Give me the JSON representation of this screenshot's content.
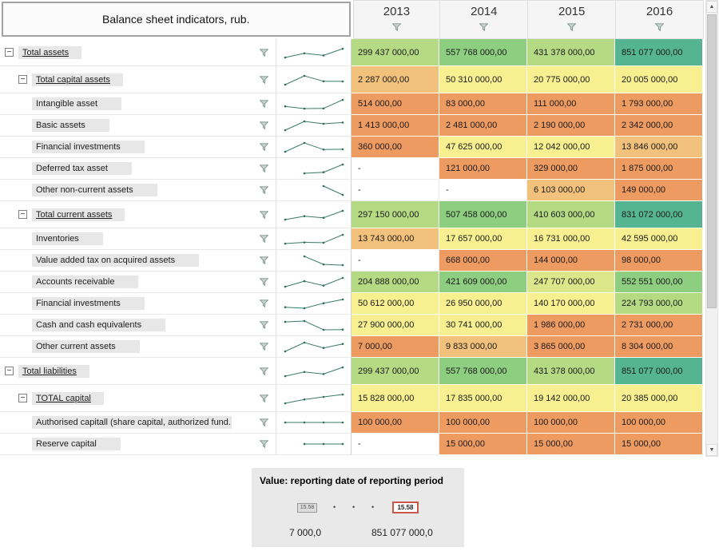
{
  "header": {
    "title": "Balance sheet indicators, rub.",
    "years": [
      "2013",
      "2014",
      "2015",
      "2016"
    ]
  },
  "icons": {
    "collapse": "−",
    "scroll_up": "▲",
    "scroll_down": "▼",
    "dot": "•",
    "filter": "funnel-icon"
  },
  "colors": {
    "palette": {
      "orange": "#EE9B62",
      "lightorange": "#F2C17B",
      "yellow": "#F7EF90",
      "yellowgreen": "#DCE68A",
      "lightgreen": "#B5DA84",
      "green": "#8DCE80",
      "teal": "#55B492",
      "none": "#FFFFFF"
    },
    "spark_line": "#3A7A6A",
    "spark_dot": "#2E6E5F"
  },
  "rows": [
    {
      "label": "Total assets",
      "level": 0,
      "group": true,
      "values": [
        "299 437 000,00",
        "557 768 000,00",
        "431 378 000,00",
        "851 077 000,00"
      ],
      "colors": [
        "lightgreen",
        "green",
        "lightgreen",
        "teal"
      ]
    },
    {
      "label": "Total capital assets",
      "level": 1,
      "group": true,
      "values": [
        "2 287 000,00",
        "50 310 000,00",
        "20 775 000,00",
        "20 005 000,00"
      ],
      "colors": [
        "lightorange",
        "yellow",
        "yellow",
        "yellow"
      ]
    },
    {
      "label": "Intangible asset",
      "level": 2,
      "group": false,
      "values": [
        "514 000,00",
        "83 000,00",
        "111 000,00",
        "1 793 000,00"
      ],
      "colors": [
        "orange",
        "orange",
        "orange",
        "orange"
      ]
    },
    {
      "label": "Basic assets",
      "level": 2,
      "group": false,
      "values": [
        "1 413 000,00",
        "2 481 000,00",
        "2 190 000,00",
        "2 342 000,00"
      ],
      "colors": [
        "orange",
        "orange",
        "orange",
        "orange"
      ]
    },
    {
      "label": "Financial investments",
      "level": 2,
      "group": false,
      "values": [
        "360 000,00",
        "47 625 000,00",
        "12 042 000,00",
        "13 846 000,00"
      ],
      "colors": [
        "orange",
        "yellow",
        "yellow",
        "lightorange"
      ]
    },
    {
      "label": "Deferred tax asset",
      "level": 2,
      "group": false,
      "values": [
        "-",
        "121 000,00",
        "329 000,00",
        "1 875 000,00"
      ],
      "colors": [
        "none",
        "orange",
        "orange",
        "orange"
      ]
    },
    {
      "label": "Other non-current assets",
      "level": 2,
      "group": false,
      "values": [
        "-",
        "-",
        "6 103 000,00",
        "149 000,00"
      ],
      "colors": [
        "none",
        "none",
        "lightorange",
        "orange"
      ]
    },
    {
      "label": "Total current assets",
      "level": 1,
      "group": true,
      "values": [
        "297 150 000,00",
        "507 458 000,00",
        "410 603 000,00",
        "831 072 000,00"
      ],
      "colors": [
        "lightgreen",
        "green",
        "lightgreen",
        "teal"
      ]
    },
    {
      "label": "Inventories",
      "level": 2,
      "group": false,
      "values": [
        "13 743 000,00",
        "17 657 000,00",
        "16 731 000,00",
        "42 595 000,00"
      ],
      "colors": [
        "lightorange",
        "yellow",
        "yellow",
        "yellow"
      ]
    },
    {
      "label": "Value added tax on acquired assets",
      "level": 2,
      "group": false,
      "values": [
        "-",
        "668 000,00",
        "144 000,00",
        "98 000,00"
      ],
      "colors": [
        "none",
        "orange",
        "orange",
        "orange"
      ]
    },
    {
      "label": "Accounts receivable",
      "level": 2,
      "group": false,
      "values": [
        "204 888 000,00",
        "421 609 000,00",
        "247 707 000,00",
        "552 551 000,00"
      ],
      "colors": [
        "lightgreen",
        "green",
        "yellowgreen",
        "green"
      ]
    },
    {
      "label": "Financial investments",
      "level": 2,
      "group": false,
      "values": [
        "50 612 000,00",
        "26 950 000,00",
        "140 170 000,00",
        "224 793 000,00"
      ],
      "colors": [
        "yellow",
        "yellow",
        "yellow",
        "lightgreen"
      ]
    },
    {
      "label": "Cash and cash equivalents",
      "level": 2,
      "group": false,
      "values": [
        "27 900 000,00",
        "30 741 000,00",
        "1 986 000,00",
        "2 731 000,00"
      ],
      "colors": [
        "yellow",
        "yellow",
        "orange",
        "orange"
      ]
    },
    {
      "label": "Other current assets",
      "level": 2,
      "group": false,
      "values": [
        "7 000,00",
        "9 833 000,00",
        "3 865 000,00",
        "8 304 000,00"
      ],
      "colors": [
        "orange",
        "lightorange",
        "orange",
        "orange"
      ]
    },
    {
      "label": "Total liabilities",
      "level": 0,
      "group": true,
      "values": [
        "299 437 000,00",
        "557 768 000,00",
        "431 378 000,00",
        "851 077 000,00"
      ],
      "colors": [
        "lightgreen",
        "green",
        "lightgreen",
        "teal"
      ]
    },
    {
      "label": "TOTAL capital",
      "level": 1,
      "group": true,
      "values": [
        "15 828 000,00",
        "17 835 000,00",
        "19 142 000,00",
        "20 385 000,00"
      ],
      "colors": [
        "yellow",
        "yellow",
        "yellow",
        "yellow"
      ]
    },
    {
      "label": "Authorised capitall (share capital, authorized fund...",
      "level": 2,
      "group": false,
      "values": [
        "100 000,00",
        "100 000,00",
        "100 000,00",
        "100 000,00"
      ],
      "colors": [
        "orange",
        "orange",
        "orange",
        "orange"
      ]
    },
    {
      "label": "Reserve capital",
      "level": 2,
      "group": false,
      "values": [
        "-",
        "15 000,00",
        "15 000,00",
        "15 000,00"
      ],
      "colors": [
        "none",
        "orange",
        "orange",
        "orange"
      ]
    }
  ],
  "legend": {
    "title": "Value: reporting date of reporting period",
    "min_box": "15.58",
    "max_box": "15.58",
    "min_label": "7 000,0",
    "max_label": "851 077 000,0"
  }
}
